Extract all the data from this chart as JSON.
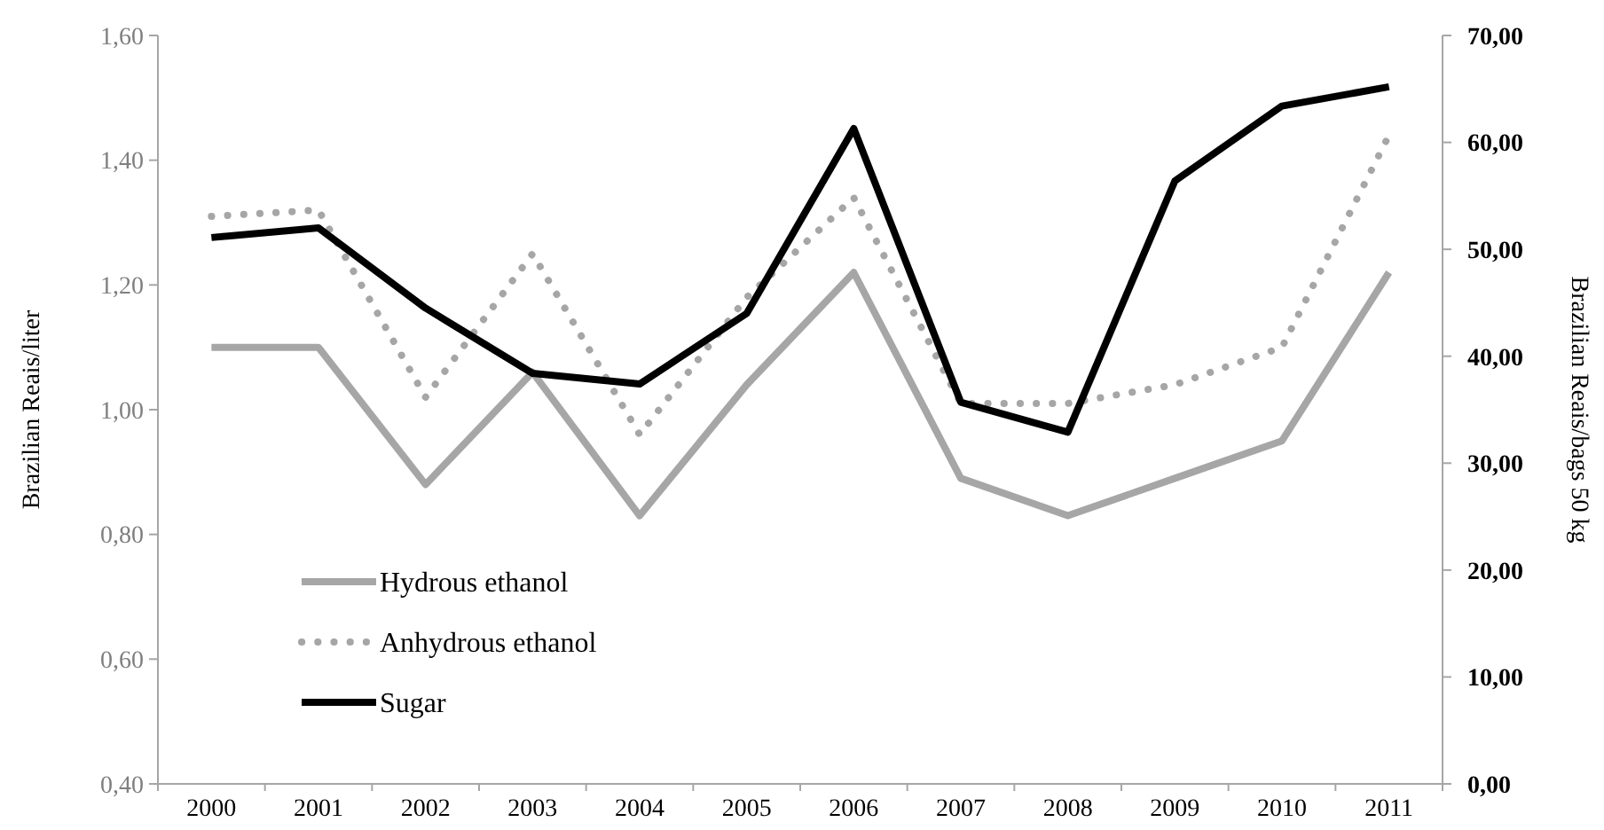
{
  "chart_data": {
    "type": "line",
    "categories": [
      "2000",
      "2001",
      "2002",
      "2003",
      "2004",
      "2005",
      "2006",
      "2007",
      "2008",
      "2009",
      "2010",
      "2011"
    ],
    "ylabel": "Brazilian Reais/liter",
    "y2label": "Brazilian Reais/bags 50 kg",
    "ylim": [
      0.4,
      1.6
    ],
    "yticks": [
      {
        "value": 0.4,
        "label": "0,40"
      },
      {
        "value": 0.6,
        "label": "0,60"
      },
      {
        "value": 0.8,
        "label": "0,80"
      },
      {
        "value": 1.0,
        "label": "1,00"
      },
      {
        "value": 1.2,
        "label": "1,20"
      },
      {
        "value": 1.4,
        "label": "1,40"
      },
      {
        "value": 1.6,
        "label": "1,60"
      }
    ],
    "y2lim": [
      0,
      70
    ],
    "y2ticks": [
      {
        "value": 0,
        "label": "0,00"
      },
      {
        "value": 10,
        "label": "10,00"
      },
      {
        "value": 20,
        "label": "20,00"
      },
      {
        "value": 30,
        "label": "30,00"
      },
      {
        "value": 40,
        "label": "40,00"
      },
      {
        "value": 50,
        "label": "50,00"
      },
      {
        "value": 60,
        "label": "60,00"
      },
      {
        "value": 70,
        "label": "70,00"
      }
    ],
    "grid": false,
    "legend": "bottom left",
    "series": [
      {
        "name": "Hydrous ethanol",
        "color": "#a6a6a6",
        "line_style": "solid",
        "values": [
          1.1,
          1.1,
          0.88,
          1.06,
          0.83,
          1.04,
          1.22,
          0.89,
          0.83,
          0.89,
          0.95,
          1.22
        ]
      },
      {
        "name": "Anhydrous ethanol",
        "color": "#a6a6a6",
        "line_style": "dotted",
        "values": [
          1.31,
          1.32,
          1.02,
          1.25,
          0.96,
          1.18,
          1.34,
          1.01,
          1.01,
          1.04,
          1.1,
          1.44
        ]
      },
      {
        "name": "Sugar",
        "color": "#000000",
        "line_style": "solid",
        "axis": "y2",
        "values": [
          51.1,
          52.0,
          44.5,
          38.4,
          37.4,
          44.0,
          61.3,
          35.7,
          32.9,
          56.4,
          63.4,
          65.2
        ]
      }
    ]
  }
}
